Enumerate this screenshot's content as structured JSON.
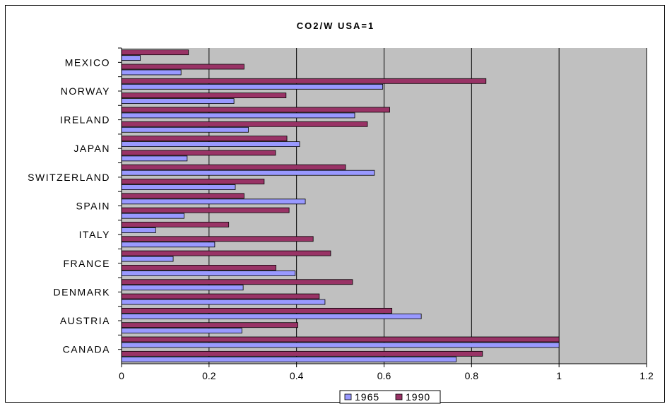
{
  "chart_data": {
    "type": "bar",
    "orientation": "horizontal",
    "title": "CO2/W USA=1",
    "xlabel": "",
    "ylabel": "",
    "xlim": [
      0,
      1.2
    ],
    "x_ticks": [
      "0",
      "0.2",
      "0.4",
      "0.6",
      "0.8",
      "1",
      "1.2"
    ],
    "grid": "vertical",
    "legend_position": "bottom",
    "colors": {
      "1965": "#9999ff",
      "1990": "#993366",
      "plot_bg": "#c0c0c0"
    },
    "categories": [
      "CANADA",
      "",
      "AUSTRIA",
      "",
      "DENMARK",
      "",
      "FRANCE",
      "",
      "ITALY",
      "",
      "SPAIN",
      "",
      "SWITZERLAND",
      "",
      "JAPAN",
      "",
      "IRELAND",
      "",
      "NORWAY",
      "",
      "MEXICO",
      ""
    ],
    "series": [
      {
        "name": "1965",
        "values": [
          0.765,
          1.0,
          0.275,
          0.685,
          0.465,
          0.278,
          0.397,
          0.118,
          0.213,
          0.078,
          0.143,
          0.42,
          0.26,
          0.578,
          0.15,
          0.407,
          0.29,
          0.533,
          0.257,
          0.597,
          0.136,
          0.043
        ]
      },
      {
        "name": "1990",
        "values": [
          0.825,
          1.0,
          0.403,
          0.618,
          0.452,
          0.528,
          0.353,
          0.478,
          0.438,
          0.245,
          0.383,
          0.28,
          0.326,
          0.512,
          0.352,
          0.378,
          0.562,
          0.613,
          0.376,
          0.833,
          0.28,
          0.153
        ]
      }
    ]
  }
}
